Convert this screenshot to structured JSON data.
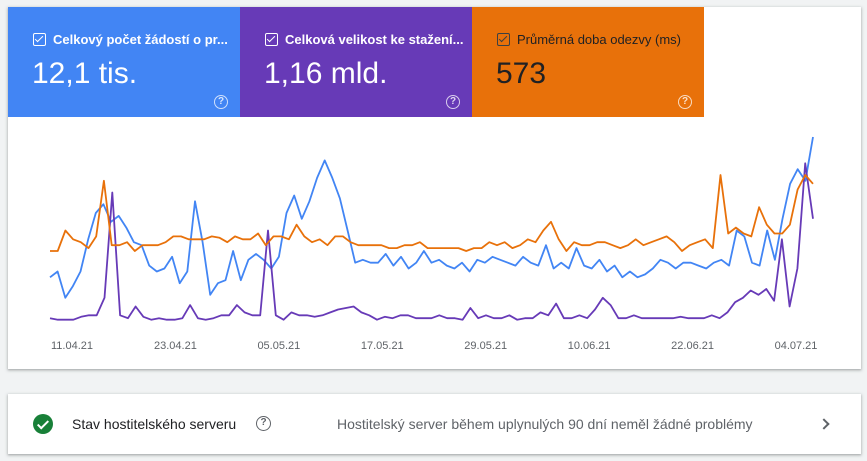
{
  "metrics": [
    {
      "label": "Celkový počet žádostí o pr...",
      "value": "12,1 tis.",
      "color": "#4285f4",
      "help": "?"
    },
    {
      "label": "Celková velikost ke stažení...",
      "value": "1,16 mld.",
      "color": "#673ab7",
      "help": "?"
    },
    {
      "label": "Průměrná doba odezvy (ms)",
      "value": "573",
      "color": "#e8710a",
      "help": "?"
    }
  ],
  "chart_data": {
    "type": "line",
    "x_ticks": [
      "11.04.21",
      "23.04.21",
      "05.05.21",
      "17.05.21",
      "29.05.21",
      "10.06.21",
      "22.06.21",
      "04.07.21"
    ],
    "grid": false,
    "legend": "none",
    "series": [
      {
        "name": "Celkový počet žádostí o pr...",
        "color": "#4285f4",
        "values": [
          64,
          68,
          50,
          58,
          68,
          90,
          108,
          114,
          102,
          106,
          98,
          88,
          86,
          72,
          68,
          70,
          78,
          60,
          68,
          116,
          88,
          52,
          60,
          62,
          82,
          62,
          76,
          80,
          76,
          70,
          78,
          108,
          120,
          104,
          116,
          132,
          144,
          132,
          118,
          96,
          74,
          76,
          74,
          74,
          80,
          72,
          78,
          70,
          74,
          82,
          74,
          76,
          72,
          70,
          74,
          68,
          76,
          74,
          78,
          76,
          74,
          72,
          78,
          74,
          72,
          86,
          70,
          74,
          70,
          84,
          72,
          70,
          76,
          68,
          72,
          64,
          68,
          64,
          66,
          70,
          76,
          74,
          70,
          74,
          74,
          72,
          70,
          74,
          76,
          72,
          96,
          92,
          74,
          72,
          96,
          76,
          104,
          128,
          138,
          130,
          160
        ]
      },
      {
        "name": "Celková velikost ke stažení...",
        "color": "#673ab7",
        "values": [
          36,
          35,
          35,
          35,
          37,
          38,
          38,
          50,
          122,
          38,
          36,
          44,
          37,
          35,
          36,
          35,
          35,
          36,
          45,
          36,
          35,
          36,
          38,
          38,
          45,
          40,
          38,
          38,
          96,
          38,
          35,
          40,
          38,
          38,
          37,
          38,
          40,
          42,
          43,
          44,
          40,
          38,
          35,
          37,
          36,
          38,
          38,
          36,
          36,
          36,
          38,
          36,
          36,
          35,
          43,
          36,
          38,
          36,
          36,
          38,
          35,
          36,
          36,
          40,
          38,
          46,
          36,
          36,
          38,
          36,
          42,
          50,
          45,
          36,
          36,
          38,
          36,
          36,
          36,
          36,
          36,
          37,
          36,
          36,
          36,
          38,
          36,
          40,
          47,
          50,
          55,
          52,
          56,
          48,
          90,
          44,
          70,
          142,
          104
        ]
      },
      {
        "name": "Průměrná doba odezvy (ms)",
        "color": "#e8710a",
        "values": [
          82,
          82,
          96,
          90,
          88,
          84,
          92,
          130,
          86,
          86,
          88,
          82,
          86,
          86,
          86,
          88,
          92,
          92,
          90,
          90,
          90,
          92,
          91,
          88,
          92,
          90,
          90,
          94,
          86,
          92,
          92,
          90,
          100,
          92,
          88,
          90,
          86,
          92,
          92,
          88,
          86,
          86,
          86,
          86,
          84,
          84,
          86,
          86,
          88,
          84,
          84,
          84,
          84,
          84,
          82,
          84,
          84,
          88,
          86,
          88,
          84,
          86,
          90,
          88,
          96,
          102,
          90,
          82,
          88,
          86,
          86,
          88,
          88,
          86,
          84,
          86,
          90,
          86,
          88,
          90,
          92,
          88,
          82,
          86,
          88,
          90,
          84,
          134,
          94,
          98,
          94,
          92,
          112,
          100,
          94,
          94,
          100,
          124,
          134,
          128
        ]
      }
    ]
  },
  "status": {
    "title": "Stav hostitelského serveru",
    "help": "?",
    "message": "Hostitelský server během uplynulých 90 dní neměl žádné problémy"
  }
}
